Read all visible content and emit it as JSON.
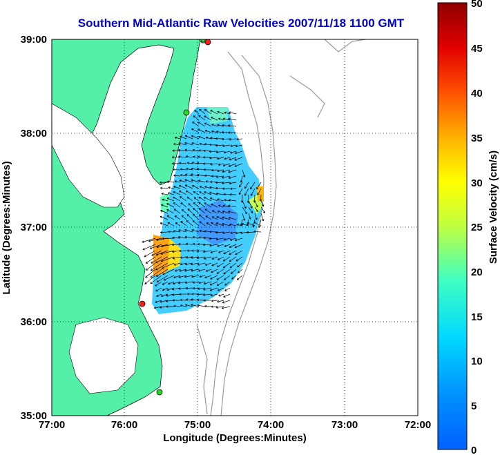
{
  "title": "Southern Mid-Atlantic Raw Velocities 2007/11/18 1100 GMT",
  "map": {
    "xlabel": "Longitude (Degrees:Minutes)",
    "ylabel": "Latitude (Degrees:Minutes)",
    "x_ticks": [
      "77:00",
      "76:00",
      "75:00",
      "74:00",
      "73:00",
      "72:00"
    ],
    "y_ticks": [
      "39:00",
      "38:00",
      "37:00",
      "36:00",
      "35:00"
    ],
    "land_color": "#55f0a8",
    "station_colors": {
      "red": "#ff1a1a",
      "green": "#22dd22"
    }
  },
  "colorbar": {
    "label": "Surface Velocity (cm/s)",
    "ticks": [
      "50",
      "45",
      "40",
      "35",
      "30",
      "25",
      "20",
      "15",
      "10",
      "5",
      "0"
    ],
    "min": 0,
    "max": 50
  }
}
